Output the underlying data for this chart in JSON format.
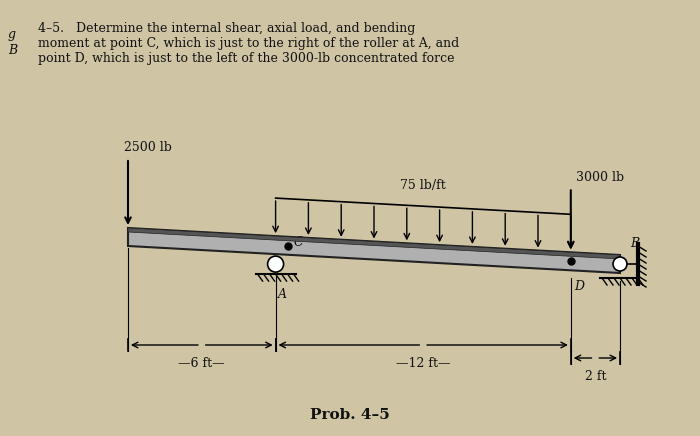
{
  "bg_color": "#cfc5a5",
  "text_color": "#111111",
  "problem_line1": "4–5.   Determine the internal shear, axial load, and bending",
  "problem_line2": "moment at point C, which is just to the right of the roller at A, and",
  "problem_line3": "point D, which is just to the left of the 3000-lb concentrated force",
  "left_g": "g",
  "left_B": "B",
  "label_2500": "2500 lb",
  "label_75": "75 lb/ft",
  "label_3000": "3000 lb",
  "label_C": "C",
  "label_A": "A",
  "label_D": "D",
  "label_B": "B",
  "label_6ft": "—6 ft—",
  "label_12ft": "—12 ft—",
  "label_2ft": "2 ft",
  "prob_label": "Prob. 4–5",
  "beam_color": "#aaaaaa",
  "beam_edge": "#333333"
}
